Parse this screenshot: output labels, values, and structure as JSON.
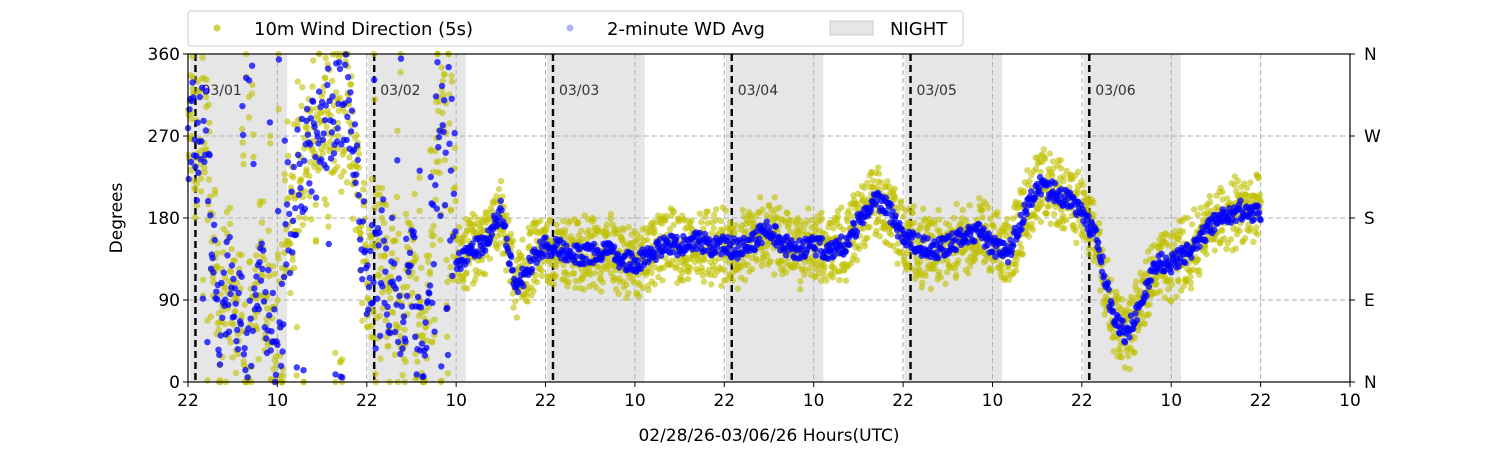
{
  "chart_data": {
    "type": "scatter",
    "title": "",
    "xlabel": "02/28/26-03/06/26  Hours(UTC)",
    "ylabel": "Degrees",
    "x_unit": "hours since 02/28 22:00 UTC",
    "xlim": [
      0,
      156
    ],
    "ylim": [
      0,
      360
    ],
    "x_ticks": [
      0,
      12,
      24,
      36,
      48,
      60,
      72,
      84,
      96,
      108,
      120,
      132,
      144,
      156
    ],
    "x_tick_labels": [
      "22",
      "10",
      "22",
      "10",
      "22",
      "10",
      "22",
      "10",
      "22",
      "10",
      "22",
      "10",
      "22",
      "10"
    ],
    "y_ticks": [
      0,
      90,
      180,
      270,
      360
    ],
    "y_tick_labels": [
      "0",
      "90",
      "180",
      "270",
      "360"
    ],
    "y2_tick_labels": [
      "N",
      "E",
      "S",
      "W",
      "N"
    ],
    "grid": "dashed at ticks",
    "legend": {
      "placement": "top-center, above plot",
      "items": [
        "10m Wind Direction (5s)",
        "2-minute WD Avg",
        "NIGHT"
      ]
    },
    "colors": {
      "wd5s": "#bfbf00",
      "wdavg": "#0000ff",
      "night": "#e6e6e6"
    },
    "day_markers": [
      {
        "x": 1,
        "label": "03/01"
      },
      {
        "x": 25,
        "label": "03/02"
      },
      {
        "x": 49,
        "label": "03/03"
      },
      {
        "x": 73,
        "label": "03/04"
      },
      {
        "x": 97,
        "label": "03/05"
      },
      {
        "x": 121,
        "label": "03/06"
      }
    ],
    "night_periods": [
      [
        0.3,
        13.3
      ],
      [
        24.2,
        37.3
      ],
      [
        48.2,
        61.3
      ],
      [
        72.2,
        85.3
      ],
      [
        96.2,
        109.3
      ],
      [
        120.2,
        133.3
      ]
    ],
    "series": [
      {
        "name": "2-minute WD Avg",
        "x_start": 0,
        "x_step": 2,
        "values": [
          260,
          300,
          60,
          120,
          20,
          100,
          30,
          200,
          250,
          270,
          320,
          300,
          100,
          150,
          60,
          130,
          40,
          280,
          130,
          145,
          150,
          190,
          100,
          130,
          150,
          145,
          140,
          140,
          145,
          135,
          130,
          140,
          150,
          150,
          155,
          150,
          150,
          145,
          155,
          170,
          150,
          145,
          150,
          145,
          150,
          175,
          200,
          190,
          160,
          150,
          145,
          150,
          160,
          165,
          150,
          140,
          180,
          215,
          210,
          200,
          185,
          160,
          80,
          50,
          90,
          130,
          130,
          140,
          160,
          175,
          185,
          190,
          185
        ]
      },
      {
        "name": "10m Wind Direction (5s)",
        "description_of_spread": "scatter around 2-minute average",
        "spread_degrees": 35
      }
    ]
  }
}
